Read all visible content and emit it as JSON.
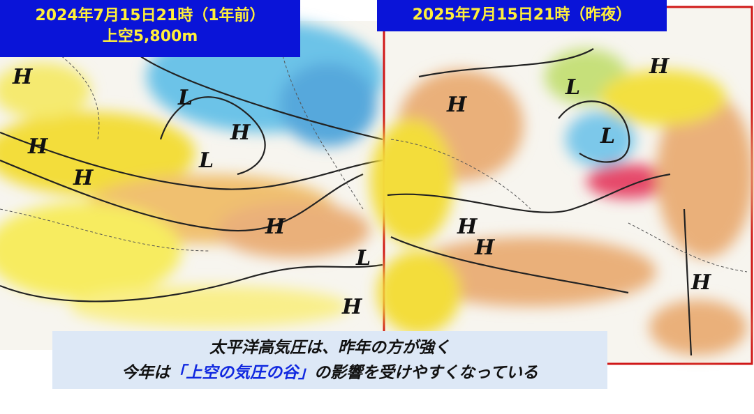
{
  "left_map": {
    "title": "2024年7月15日21時（1年前）",
    "subtitle": "上空5,800m",
    "symbols": [
      "H",
      "H",
      "L",
      "H",
      "L",
      "H",
      "H",
      "L",
      "H"
    ]
  },
  "right_map": {
    "title": "2025年7月15日21時（昨夜）",
    "symbols": [
      "H",
      "H",
      "L",
      "L",
      "H",
      "H",
      "H"
    ]
  },
  "caption": {
    "line1": "太平洋高気圧は、昨年の方が強く",
    "line2_before": "今年は",
    "line2_highlight": "「上空の気圧の谷」",
    "line2_after": "の影響を受けやすくなっている"
  }
}
